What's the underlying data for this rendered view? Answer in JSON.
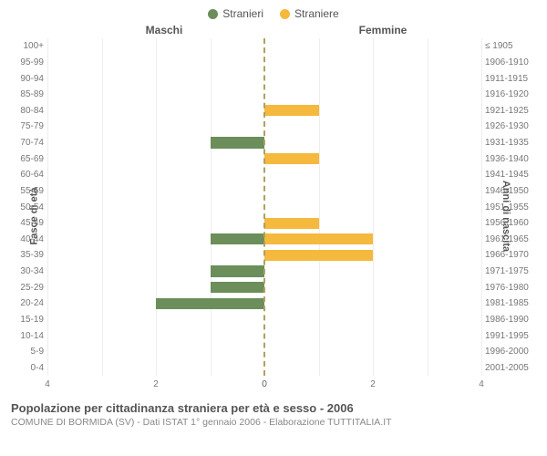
{
  "legend": {
    "male": {
      "label": "Stranieri",
      "color": "#6b8e5a"
    },
    "female": {
      "label": "Straniere",
      "color": "#f5b93e"
    }
  },
  "headers": {
    "left": "Maschi",
    "right": "Femmine"
  },
  "axes": {
    "left_label": "Fasce di età",
    "right_label": "Anni di nascita",
    "xmax": 4,
    "xticks_left": [
      4,
      2,
      0
    ],
    "xticks_right": [
      0,
      2,
      4
    ],
    "grid_color": "#eeeeee",
    "center_dash_color": "#b0a060"
  },
  "rows": [
    {
      "age": "100+",
      "birth": "≤ 1905",
      "m": 0,
      "f": 0
    },
    {
      "age": "95-99",
      "birth": "1906-1910",
      "m": 0,
      "f": 0
    },
    {
      "age": "90-94",
      "birth": "1911-1915",
      "m": 0,
      "f": 0
    },
    {
      "age": "85-89",
      "birth": "1916-1920",
      "m": 0,
      "f": 0
    },
    {
      "age": "80-84",
      "birth": "1921-1925",
      "m": 0,
      "f": 1
    },
    {
      "age": "75-79",
      "birth": "1926-1930",
      "m": 0,
      "f": 0
    },
    {
      "age": "70-74",
      "birth": "1931-1935",
      "m": 1,
      "f": 0
    },
    {
      "age": "65-69",
      "birth": "1936-1940",
      "m": 0,
      "f": 1
    },
    {
      "age": "60-64",
      "birth": "1941-1945",
      "m": 0,
      "f": 0
    },
    {
      "age": "55-59",
      "birth": "1946-1950",
      "m": 0,
      "f": 0
    },
    {
      "age": "50-54",
      "birth": "1951-1955",
      "m": 0,
      "f": 0
    },
    {
      "age": "45-49",
      "birth": "1956-1960",
      "m": 0,
      "f": 1
    },
    {
      "age": "40-44",
      "birth": "1961-1965",
      "m": 1,
      "f": 2
    },
    {
      "age": "35-39",
      "birth": "1966-1970",
      "m": 0,
      "f": 2
    },
    {
      "age": "30-34",
      "birth": "1971-1975",
      "m": 1,
      "f": 0
    },
    {
      "age": "25-29",
      "birth": "1976-1980",
      "m": 1,
      "f": 0
    },
    {
      "age": "20-24",
      "birth": "1981-1985",
      "m": 2,
      "f": 0
    },
    {
      "age": "15-19",
      "birth": "1986-1990",
      "m": 0,
      "f": 0
    },
    {
      "age": "10-14",
      "birth": "1991-1995",
      "m": 0,
      "f": 0
    },
    {
      "age": "5-9",
      "birth": "1996-2000",
      "m": 0,
      "f": 0
    },
    {
      "age": "0-4",
      "birth": "2001-2005",
      "m": 0,
      "f": 0
    }
  ],
  "caption": {
    "title": "Popolazione per cittadinanza straniera per età e sesso - 2006",
    "subtitle": "COMUNE DI BORMIDA (SV) - Dati ISTAT 1° gennaio 2006 - Elaborazione TUTTITALIA.IT"
  },
  "style": {
    "background_color": "#ffffff",
    "tick_font_size": 10,
    "label_font_size": 11,
    "title_font_size": 13,
    "subtitle_font_size": 10.5
  }
}
